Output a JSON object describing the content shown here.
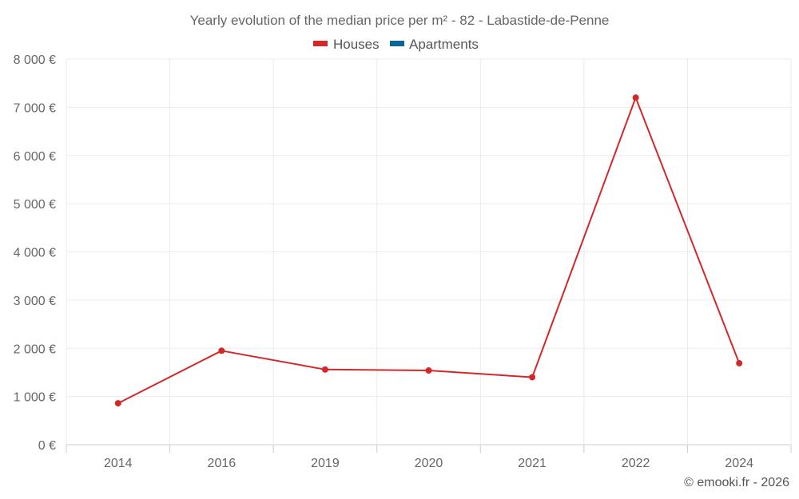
{
  "chart_data": {
    "type": "line",
    "title": "Yearly evolution of the median price per m² - 82 - Labastide-de-Penne",
    "categories": [
      "2014",
      "2016",
      "2019",
      "2020",
      "2021",
      "2022",
      "2024"
    ],
    "series": [
      {
        "name": "Houses",
        "color": "#d42828",
        "values": [
          860,
          1950,
          1560,
          1540,
          1400,
          7200,
          1690
        ]
      },
      {
        "name": "Apartments",
        "color": "#0a6496",
        "values": [
          null,
          null,
          null,
          null,
          null,
          null,
          null
        ]
      }
    ],
    "ylim": [
      0,
      8000
    ],
    "yticks": [
      0,
      1000,
      2000,
      3000,
      4000,
      5000,
      6000,
      7000,
      8000
    ],
    "ytick_labels": [
      "0 €",
      "1 000 €",
      "2 000 €",
      "3 000 €",
      "4 000 €",
      "5 000 €",
      "6 000 €",
      "7 000 €",
      "8 000 €"
    ],
    "xlabel": "",
    "ylabel": "",
    "grid": true,
    "legend_position": "top-center"
  },
  "credit": "© emooki.fr - 2026"
}
